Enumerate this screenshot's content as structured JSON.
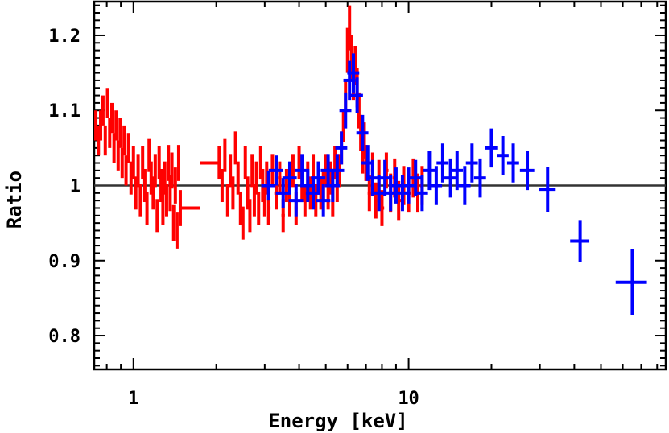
{
  "chart_data": {
    "type": "scatter",
    "xlabel": "Energy [keV]",
    "ylabel": "Ratio",
    "x_scale": "log",
    "xlim": [
      0.72,
      86
    ],
    "ylim": [
      0.755,
      1.245
    ],
    "x_ticks": [
      {
        "value": 1,
        "label": "1"
      },
      {
        "value": 10,
        "label": "10"
      }
    ],
    "y_ticks": [
      {
        "value": 0.8,
        "label": "0.8"
      },
      {
        "value": 0.9,
        "label": "0.9"
      },
      {
        "value": 1.0,
        "label": "1"
      },
      {
        "value": 1.1,
        "label": "1.1"
      },
      {
        "value": 1.2,
        "label": "1.2"
      }
    ],
    "reference_line": {
      "y": 1.0,
      "color": "#333333"
    },
    "series": [
      {
        "color": "#ff0000",
        "points": [
          [
            0.73,
            1.08,
            0.02
          ],
          [
            0.746,
            1.06,
            0.02
          ],
          [
            0.76,
            1.08,
            0.02
          ],
          [
            0.775,
            1.1,
            0.02
          ],
          [
            0.79,
            1.06,
            0.02
          ],
          [
            0.805,
            1.11,
            0.02
          ],
          [
            0.82,
            1.07,
            0.02
          ],
          [
            0.835,
            1.09,
            0.02
          ],
          [
            0.85,
            1.05,
            0.02
          ],
          [
            0.865,
            1.08,
            0.02
          ],
          [
            0.88,
            1.04,
            0.02
          ],
          [
            0.895,
            1.07,
            0.02
          ],
          [
            0.91,
            1.03,
            0.02
          ],
          [
            0.925,
            1.06,
            0.02
          ],
          [
            0.94,
            1.02,
            0.02
          ],
          [
            0.96,
            1.05,
            0.02
          ],
          [
            0.98,
            1.01,
            0.022
          ],
          [
            1.0,
            1.03,
            0.022
          ],
          [
            1.02,
            0.99,
            0.022
          ],
          [
            1.04,
            1.02,
            0.022
          ],
          [
            1.06,
            0.98,
            0.022
          ],
          [
            1.08,
            1.03,
            0.022
          ],
          [
            1.1,
            1.0,
            0.022
          ],
          [
            1.12,
            0.97,
            0.022
          ],
          [
            1.14,
            1.04,
            0.022
          ],
          [
            1.16,
            1.01,
            0.022
          ],
          [
            1.18,
            0.99,
            0.022
          ],
          [
            1.2,
            1.02,
            0.022
          ],
          [
            1.22,
            0.96,
            0.022
          ],
          [
            1.24,
            1.03,
            0.022
          ],
          [
            1.26,
            1.0,
            0.022
          ],
          [
            1.28,
            0.97,
            0.022
          ],
          [
            1.3,
            1.01,
            0.022
          ],
          [
            1.32,
            0.98,
            0.022
          ],
          [
            1.34,
            1.03,
            0.024
          ],
          [
            1.36,
            0.99,
            0.024
          ],
          [
            1.38,
            1.02,
            0.024
          ],
          [
            1.4,
            0.95,
            0.024
          ],
          [
            1.42,
            1.0,
            0.024
          ],
          [
            1.44,
            0.94,
            0.024
          ],
          [
            1.46,
            1.03,
            0.024
          ],
          [
            1.48,
            0.97,
            0.024
          ],
          [
            2.05,
            1.03,
            0.022
          ],
          [
            2.1,
            1.0,
            0.022
          ],
          [
            2.15,
            1.04,
            0.022
          ],
          [
            2.2,
            0.98,
            0.022
          ],
          [
            2.25,
            1.02,
            0.022
          ],
          [
            2.3,
            0.99,
            0.022
          ],
          [
            2.35,
            1.05,
            0.022
          ],
          [
            2.4,
            1.01,
            0.022
          ],
          [
            2.45,
            0.97,
            0.022
          ],
          [
            2.5,
            0.95,
            0.022
          ],
          [
            2.55,
            1.03,
            0.022
          ],
          [
            2.6,
            0.99,
            0.022
          ],
          [
            2.65,
            0.96,
            0.022
          ],
          [
            2.7,
            1.02,
            0.022
          ],
          [
            2.75,
            0.98,
            0.022
          ],
          [
            2.8,
            1.01,
            0.022
          ],
          [
            2.85,
            0.97,
            0.022
          ],
          [
            2.9,
            1.03,
            0.022
          ],
          [
            2.95,
            1.0,
            0.022
          ],
          [
            3.0,
            0.98,
            0.022
          ],
          [
            3.05,
            1.01,
            0.022
          ],
          [
            3.1,
            0.97,
            0.022
          ],
          [
            3.2,
            1.02,
            0.022
          ],
          [
            3.3,
            0.99,
            0.022
          ],
          [
            3.4,
            1.01,
            0.022
          ],
          [
            3.5,
            0.96,
            0.022
          ],
          [
            3.6,
            1.0,
            0.022
          ],
          [
            3.7,
            0.98,
            0.022
          ],
          [
            3.8,
            1.02,
            0.022
          ],
          [
            3.9,
            0.97,
            0.022
          ],
          [
            4.0,
            1.03,
            0.022
          ],
          [
            4.1,
            1.0,
            0.022
          ],
          [
            4.2,
            0.98,
            0.022
          ],
          [
            4.3,
            1.01,
            0.022
          ],
          [
            4.4,
            0.99,
            0.022
          ],
          [
            4.5,
            1.02,
            0.022
          ],
          [
            4.6,
            0.98,
            0.022
          ],
          [
            4.7,
            1.01,
            0.022
          ],
          [
            4.8,
            0.99,
            0.022
          ],
          [
            4.9,
            1.0,
            0.022
          ],
          [
            5.0,
            1.02,
            0.022
          ],
          [
            5.1,
            0.99,
            0.022
          ],
          [
            5.2,
            1.01,
            0.022
          ],
          [
            5.3,
            0.98,
            0.022
          ],
          [
            5.4,
            1.03,
            0.022
          ],
          [
            5.5,
            1.0,
            0.022
          ],
          [
            5.6,
            1.02,
            0.022
          ],
          [
            5.7,
            1.05,
            0.022
          ],
          [
            5.8,
            1.08,
            0.022
          ],
          [
            5.9,
            1.12,
            0.022
          ],
          [
            6.0,
            1.18,
            0.03
          ],
          [
            6.1,
            1.21,
            0.03
          ],
          [
            6.2,
            1.17,
            0.03
          ],
          [
            6.3,
            1.14,
            0.026
          ],
          [
            6.4,
            1.16,
            0.026
          ],
          [
            6.5,
            1.13,
            0.026
          ],
          [
            6.6,
            1.1,
            0.024
          ],
          [
            6.7,
            1.07,
            0.024
          ],
          [
            6.8,
            1.04,
            0.024
          ],
          [
            6.9,
            1.06,
            0.024
          ],
          [
            7.0,
            1.03,
            0.024
          ],
          [
            7.2,
            0.99,
            0.024
          ],
          [
            7.4,
            1.02,
            0.024
          ],
          [
            7.6,
            0.98,
            0.024
          ],
          [
            7.8,
            1.01,
            0.024
          ],
          [
            8.0,
            0.97,
            0.024
          ],
          [
            8.3,
            1.02,
            0.024
          ],
          [
            8.6,
            0.99,
            0.026
          ],
          [
            8.9,
            1.01,
            0.026
          ],
          [
            9.2,
            0.98,
            0.026
          ],
          [
            9.6,
            1.0,
            0.026
          ],
          [
            10.0,
            0.99,
            0.026
          ],
          [
            10.4,
            1.01,
            0.026
          ],
          [
            10.8,
            0.99,
            0.026
          ],
          [
            11.2,
            1.0,
            0.026
          ]
        ]
      },
      {
        "color": "#0000ff",
        "points": [
          [
            3.1,
            1.0,
            0.02,
            0.06
          ],
          [
            3.3,
            1.02,
            0.02,
            0.06
          ],
          [
            3.5,
            0.99,
            0.02,
            0.06
          ],
          [
            3.7,
            1.01,
            0.022,
            0.06
          ],
          [
            3.9,
            0.98,
            0.022,
            0.06
          ],
          [
            4.1,
            1.02,
            0.022,
            0.06
          ],
          [
            4.3,
            1.0,
            0.022,
            0.06
          ],
          [
            4.5,
            0.99,
            0.022,
            0.06
          ],
          [
            4.7,
            1.01,
            0.022,
            0.06
          ],
          [
            4.9,
            0.98,
            0.022,
            0.06
          ],
          [
            5.1,
            1.02,
            0.022,
            0.06
          ],
          [
            5.3,
            1.0,
            0.022,
            0.06
          ],
          [
            5.5,
            1.02,
            0.022,
            0.06
          ],
          [
            5.7,
            1.05,
            0.022,
            0.05
          ],
          [
            5.9,
            1.1,
            0.024,
            0.05
          ],
          [
            6.1,
            1.14,
            0.026,
            0.05
          ],
          [
            6.3,
            1.15,
            0.026,
            0.05
          ],
          [
            6.5,
            1.12,
            0.024,
            0.05
          ],
          [
            6.8,
            1.07,
            0.024,
            0.05
          ],
          [
            7.1,
            1.03,
            0.024,
            0.05
          ],
          [
            7.4,
            1.01,
            0.024,
            0.05
          ],
          [
            7.8,
            0.99,
            0.024,
            0.05
          ],
          [
            8.2,
            1.01,
            0.024,
            0.05
          ],
          [
            8.6,
            0.99,
            0.024,
            0.05
          ],
          [
            9.0,
            1.0,
            0.024,
            0.05
          ],
          [
            9.5,
            0.99,
            0.024,
            0.05
          ],
          [
            10.0,
            1.0,
            0.024,
            0.05
          ],
          [
            10.6,
            1.01,
            0.024,
            0.05
          ],
          [
            11.2,
            0.99,
            0.024,
            0.05
          ],
          [
            11.9,
            1.02,
            0.026,
            0.05
          ],
          [
            12.6,
            1.0,
            0.026,
            0.05
          ],
          [
            13.3,
            1.03,
            0.026,
            0.05
          ],
          [
            14.2,
            1.01,
            0.026,
            0.05
          ],
          [
            15.0,
            1.02,
            0.026,
            0.05
          ],
          [
            16.0,
            1.0,
            0.026,
            0.05
          ],
          [
            17.0,
            1.03,
            0.026,
            0.05
          ],
          [
            18.2,
            1.01,
            0.026,
            0.05
          ],
          [
            20.0,
            1.05,
            0.026,
            0.05
          ],
          [
            22.0,
            1.04,
            0.026,
            0.05
          ],
          [
            24.0,
            1.03,
            0.026,
            0.05
          ],
          [
            27.0,
            1.02,
            0.026,
            0.06
          ],
          [
            32.0,
            0.995,
            0.03,
            0.07
          ],
          [
            42.0,
            0.926,
            0.028,
            0.08
          ],
          [
            65.0,
            0.871,
            0.044,
            0.13
          ]
        ]
      }
    ]
  }
}
